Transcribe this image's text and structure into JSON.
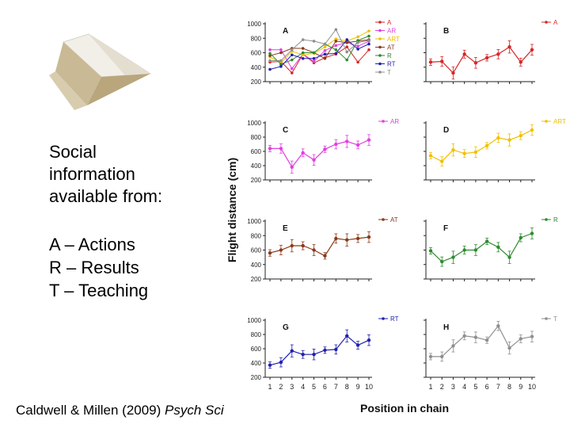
{
  "slide": {
    "text_lines": [
      "Social",
      "information",
      "available from:"
    ],
    "key_lines": [
      "A – Actions",
      "R – Results",
      "T – Teaching"
    ],
    "citation_plain": "Caldwell & Millen (2009) ",
    "citation_italic": "Psych Sci",
    "y_axis_title": "Flight distance (cm)",
    "x_axis_title": "Position in chain"
  },
  "chart_data": [
    {
      "type": "line",
      "panel": "A",
      "ylim": [
        200,
        1000
      ],
      "yticks": [
        "1000",
        "800",
        "600",
        "400",
        "200"
      ],
      "x": [
        1,
        2,
        3,
        4,
        5,
        6,
        7,
        8,
        9,
        10
      ],
      "series": [
        {
          "name": "A",
          "color": "#d62728",
          "values": [
            470,
            480,
            320,
            580,
            460,
            530,
            580,
            680,
            470,
            640
          ]
        },
        {
          "name": "AR",
          "color": "#e040e0",
          "values": [
            640,
            640,
            380,
            580,
            480,
            630,
            700,
            740,
            690,
            760
          ]
        },
        {
          "name": "ART",
          "color": "#f0c000",
          "values": [
            540,
            460,
            620,
            570,
            590,
            680,
            790,
            760,
            820,
            900
          ]
        },
        {
          "name": "AT",
          "color": "#8b3a1a",
          "values": [
            560,
            600,
            660,
            660,
            600,
            520,
            760,
            740,
            760,
            780
          ]
        },
        {
          "name": "R",
          "color": "#2e8b2e",
          "values": [
            590,
            440,
            500,
            600,
            600,
            720,
            640,
            500,
            770,
            830
          ]
        },
        {
          "name": "RT",
          "color": "#2020b0",
          "values": [
            370,
            410,
            570,
            520,
            520,
            580,
            590,
            780,
            650,
            720
          ]
        },
        {
          "name": "T",
          "color": "#909090",
          "values": [
            490,
            490,
            640,
            780,
            760,
            720,
            920,
            610,
            740,
            770
          ]
        }
      ]
    },
    {
      "type": "line",
      "panel": "B",
      "ylim": [
        200,
        1000
      ],
      "x": [
        1,
        2,
        3,
        4,
        5,
        6,
        7,
        8,
        9,
        10
      ],
      "series": [
        {
          "name": "A",
          "color": "#d62728",
          "values": [
            470,
            480,
            320,
            580,
            460,
            530,
            580,
            680,
            470,
            640
          ]
        }
      ]
    },
    {
      "type": "line",
      "panel": "C",
      "ylim": [
        200,
        1000
      ],
      "yticks": [
        "1000",
        "800",
        "600",
        "400",
        "200"
      ],
      "x": [
        1,
        2,
        3,
        4,
        5,
        6,
        7,
        8,
        9,
        10
      ],
      "series": [
        {
          "name": "AR",
          "color": "#e040e0",
          "values": [
            640,
            640,
            380,
            580,
            480,
            630,
            700,
            740,
            690,
            760
          ]
        }
      ]
    },
    {
      "type": "line",
      "panel": "D",
      "ylim": [
        200,
        1000
      ],
      "x": [
        1,
        2,
        3,
        4,
        5,
        6,
        7,
        8,
        9,
        10
      ],
      "series": [
        {
          "name": "ART",
          "color": "#f0c000",
          "values": [
            540,
            460,
            620,
            570,
            590,
            680,
            790,
            760,
            820,
            900
          ]
        }
      ]
    },
    {
      "type": "line",
      "panel": "E",
      "ylim": [
        200,
        1000
      ],
      "yticks": [
        "1000",
        "800",
        "600",
        "400",
        "200"
      ],
      "x": [
        1,
        2,
        3,
        4,
        5,
        6,
        7,
        8,
        9,
        10
      ],
      "series": [
        {
          "name": "AT",
          "color": "#8b3a1a",
          "values": [
            560,
            600,
            660,
            660,
            600,
            520,
            760,
            740,
            760,
            780
          ]
        }
      ]
    },
    {
      "type": "line",
      "panel": "F",
      "ylim": [
        200,
        1000
      ],
      "x": [
        1,
        2,
        3,
        4,
        5,
        6,
        7,
        8,
        9,
        10
      ],
      "series": [
        {
          "name": "R",
          "color": "#2e8b2e",
          "values": [
            590,
            440,
            500,
            600,
            600,
            720,
            640,
            500,
            770,
            830
          ]
        }
      ]
    },
    {
      "type": "line",
      "panel": "G",
      "ylim": [
        200,
        1000
      ],
      "yticks": [
        "1000",
        "800",
        "600",
        "400",
        "200"
      ],
      "x": [
        1,
        2,
        3,
        4,
        5,
        6,
        7,
        8,
        9,
        10
      ],
      "xticks": [
        "1",
        "2",
        "3",
        "4",
        "5",
        "6",
        "7",
        "8",
        "9",
        "10"
      ],
      "series": [
        {
          "name": "RT",
          "color": "#2020b0",
          "values": [
            370,
            410,
            570,
            520,
            520,
            580,
            590,
            780,
            650,
            720
          ]
        }
      ]
    },
    {
      "type": "line",
      "panel": "H",
      "ylim": [
        200,
        1000
      ],
      "x": [
        1,
        2,
        3,
        4,
        5,
        6,
        7,
        8,
        9,
        10
      ],
      "xticks": [
        "1",
        "2",
        "3",
        "4",
        "5",
        "6",
        "7",
        "8",
        "9",
        "10"
      ],
      "series": [
        {
          "name": "T",
          "color": "#909090",
          "values": [
            490,
            490,
            640,
            780,
            760,
            720,
            920,
            610,
            740,
            770
          ]
        }
      ]
    }
  ]
}
